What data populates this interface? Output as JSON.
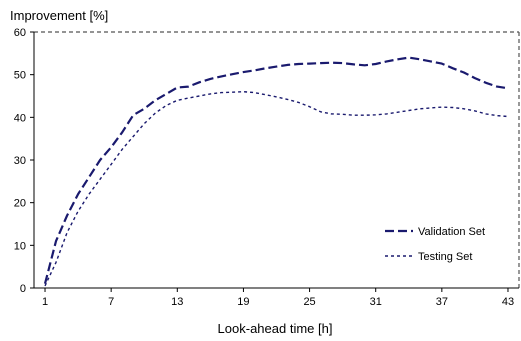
{
  "chart_data": {
    "type": "line",
    "title": "",
    "xlabel": "Look-ahead time [h]",
    "ylabel": "Improvement [%]",
    "xlim": [
      0,
      44
    ],
    "ylim": [
      0,
      60
    ],
    "x_ticks": [
      1,
      7,
      13,
      19,
      25,
      31,
      37,
      43
    ],
    "y_ticks": [
      0,
      10,
      20,
      30,
      40,
      50,
      60
    ],
    "grid": false,
    "legend_position": "bottom-right",
    "colors": {
      "plot_border": "#555555",
      "validation": "#1a1a6e",
      "testing": "#1a1a6e"
    },
    "series": [
      {
        "name": "Validation Set",
        "style": "dashed",
        "x": [
          1,
          2,
          3,
          4,
          5,
          6,
          7,
          8,
          9,
          10,
          11,
          12,
          13,
          14,
          15,
          16,
          17,
          18,
          19,
          20,
          21,
          22,
          23,
          24,
          25,
          26,
          27,
          28,
          29,
          30,
          31,
          32,
          33,
          34,
          35,
          36,
          37,
          38,
          39,
          40,
          41,
          42,
          43
        ],
        "values": [
          1,
          11,
          17,
          22,
          26,
          30,
          33,
          36.5,
          40.5,
          42,
          44,
          45.5,
          47,
          47.2,
          48.2,
          49,
          49.6,
          50.1,
          50.6,
          51,
          51.5,
          51.9,
          52.3,
          52.5,
          52.6,
          52.7,
          52.8,
          52.7,
          52.4,
          52.2,
          52.5,
          53.1,
          53.6,
          54,
          53.6,
          53.1,
          52.6,
          51.5,
          50.5,
          49.2,
          48.1,
          47.2,
          46.8
        ]
      },
      {
        "name": "Testing Set",
        "style": "dotted",
        "x": [
          1,
          2,
          3,
          4,
          5,
          6,
          7,
          8,
          9,
          10,
          11,
          12,
          13,
          14,
          15,
          16,
          17,
          18,
          19,
          20,
          21,
          22,
          23,
          24,
          25,
          26,
          27,
          28,
          29,
          30,
          31,
          32,
          33,
          34,
          35,
          36,
          37,
          38,
          39,
          40,
          41,
          42,
          43
        ],
        "values": [
          0.5,
          6,
          13,
          18,
          22,
          25.5,
          29,
          32.5,
          35.5,
          38.5,
          41,
          42.8,
          44,
          44.5,
          45,
          45.5,
          45.8,
          45.9,
          46,
          45.8,
          45.3,
          44.8,
          44.2,
          43.5,
          42.5,
          41.3,
          40.8,
          40.7,
          40.5,
          40.5,
          40.6,
          40.8,
          41.2,
          41.6,
          42,
          42.2,
          42.4,
          42.3,
          42,
          41.5,
          40.8,
          40.4,
          40.2
        ]
      }
    ]
  }
}
